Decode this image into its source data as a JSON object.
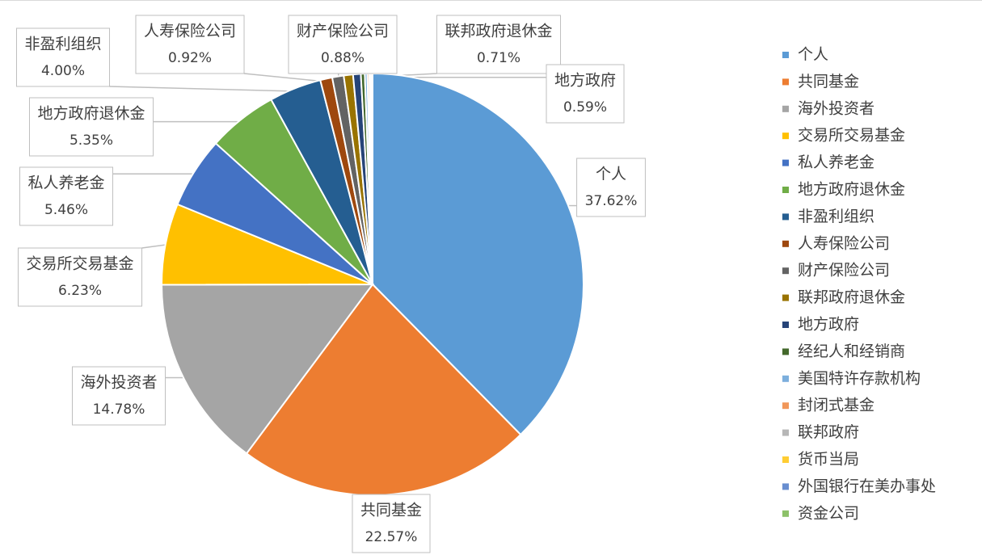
{
  "chart_data": {
    "type": "pie",
    "categories": [
      "个人",
      "共同基金",
      "海外投资者",
      "交易所交易基金",
      "私人养老金",
      "地方政府退休金",
      "非盈利组织",
      "人寿保险公司",
      "财产保险公司",
      "联邦政府退休金",
      "地方政府",
      "经纪人和经销商",
      "美国特许存款机构",
      "封闭式基金",
      "联邦政府",
      "货币当局",
      "外国银行在美办事处",
      "资金公司"
    ],
    "values": [
      37.62,
      22.57,
      14.78,
      6.23,
      5.46,
      5.35,
      4.0,
      0.92,
      0.88,
      0.71,
      0.59,
      0.3,
      0.2,
      0.15,
      0.1,
      0.07,
      0.04,
      0.03
    ],
    "value_labels": [
      "37.62%",
      "22.57%",
      "14.78%",
      "6.23%",
      "5.46%",
      "5.35%",
      "4.00%",
      "0.92%",
      "0.88%",
      "0.71%",
      "0.59%",
      null,
      null,
      null,
      null,
      null,
      null,
      null
    ],
    "colors": [
      "#5b9bd5",
      "#ed7d31",
      "#a5a5a5",
      "#ffc000",
      "#4472c4",
      "#70ad47",
      "#255e91",
      "#9e480e",
      "#636363",
      "#997300",
      "#264478",
      "#43682b",
      "#7cafdd",
      "#f1975a",
      "#b7b7b7",
      "#ffcd33",
      "#698ed0",
      "#8cc168"
    ],
    "legend": "right"
  }
}
